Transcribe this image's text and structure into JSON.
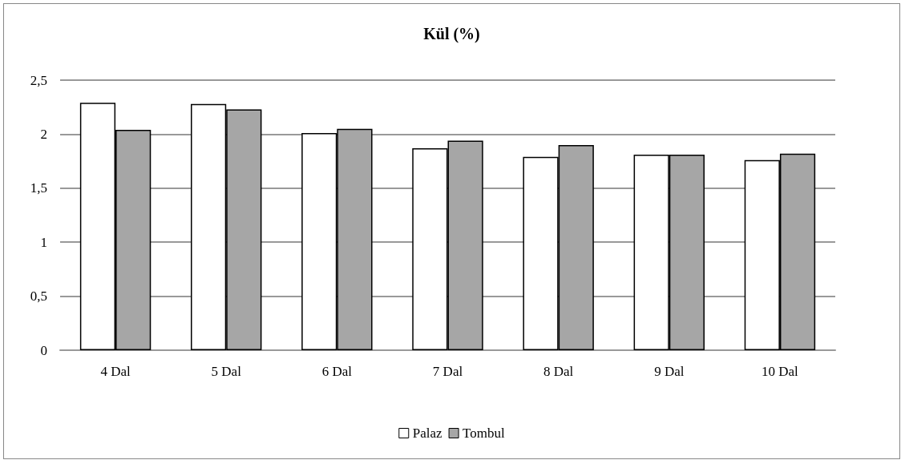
{
  "chart_data": {
    "type": "bar",
    "title": "Kül (%)",
    "categories": [
      "4 Dal",
      "5 Dal",
      "6 Dal",
      "7 Dal",
      "8 Dal",
      "9 Dal",
      "10 Dal"
    ],
    "series": [
      {
        "name": "Palaz",
        "color": "#ffffff",
        "values": [
          2.29,
          2.28,
          2.01,
          1.87,
          1.79,
          1.81,
          1.76
        ]
      },
      {
        "name": "Tombul",
        "color": "#a6a6a6",
        "values": [
          2.04,
          2.23,
          2.05,
          1.94,
          1.9,
          1.81,
          1.82
        ]
      }
    ],
    "ylim": [
      0,
      2.5
    ],
    "yticks": [
      0,
      {
        "value": 0.5,
        "label": "0,5"
      },
      1,
      {
        "value": 1.5,
        "label": "1,5"
      },
      2,
      {
        "value": 2.5,
        "label": "2,5"
      }
    ],
    "grid": "y",
    "legend": "bottom"
  }
}
